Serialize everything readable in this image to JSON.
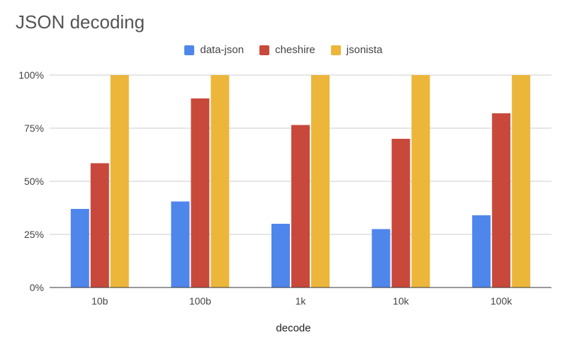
{
  "chart_data": {
    "type": "bar",
    "title": "JSON decoding",
    "xlabel": "decode",
    "ylabel": "",
    "categories": [
      "10b",
      "100b",
      "1k",
      "10k",
      "100k"
    ],
    "series": [
      {
        "name": "data-json",
        "color": "#4f86ec",
        "values": [
          37,
          40.5,
          30,
          27.5,
          34
        ]
      },
      {
        "name": "cheshire",
        "color": "#c8493b",
        "values": [
          58.5,
          89,
          76.5,
          70,
          82
        ]
      },
      {
        "name": "jsonista",
        "color": "#ecb63b",
        "values": [
          100,
          100,
          100,
          100,
          100
        ]
      }
    ],
    "ylim": [
      0,
      100
    ],
    "yticks": [
      "0%",
      "25%",
      "50%",
      "75%",
      "100%"
    ],
    "grid": true,
    "legend_position": "top"
  }
}
